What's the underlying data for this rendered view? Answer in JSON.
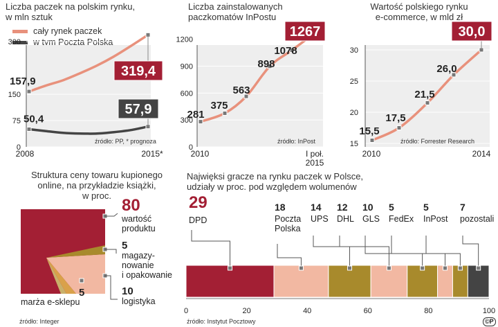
{
  "colors": {
    "salmon": "#E8917C",
    "dark": "#444444",
    "maroon": "#A31F34",
    "tan": "#F2B8A2",
    "gold": "#A88A2C",
    "grid_bg": "#EEEEEE"
  },
  "panel1": {
    "title": "Liczba paczek na polskim rynku,\nw mln sztuk",
    "legend_all": "cały rynek paczek",
    "legend_pp": "w tym Poczta Polska",
    "source": "źródło: PP, * prognoza"
  },
  "panel2": {
    "title": "Liczba zainstalowanych\npaczkomatów InPostu",
    "source": "źródło: InPost"
  },
  "panel3": {
    "title": "Wartość polskiego rynku\ne-commerce, w mld zł",
    "source": "źródło: Forrester Research"
  },
  "panel4": {
    "title": "Struktura ceny towaru kupionego\nonline, na przykładzie książki,\nw proc.",
    "source": "źródło: Integer"
  },
  "panel5": {
    "title": "Najwięksi gracze na rynku paczek w Polsce,\nudziały w proc. pod względem wolumenów",
    "source": "źródło: Instytut Pocztowy"
  },
  "logo_text": "©P",
  "chart_data": [
    {
      "type": "line",
      "title": "Liczba paczek na polskim rynku, w mln sztuk",
      "x": [
        2008,
        2009,
        2010,
        2011,
        2012,
        2013,
        2014,
        2015
      ],
      "x_tick_labels": [
        "2008",
        "2015*"
      ],
      "series": [
        {
          "name": "cały rynek paczek",
          "values": [
            157.9,
            175,
            190,
            210,
            232,
            258,
            288,
            319.4
          ],
          "labels": {
            "first": "157,9",
            "last": "319,4"
          }
        },
        {
          "name": "w tym Poczta Polska",
          "values": [
            50.4,
            45,
            40,
            38,
            38,
            42,
            48,
            57.9
          ],
          "labels": {
            "first": "50,4",
            "last": "57,9"
          }
        }
      ],
      "y_ticks": [
        0,
        75,
        150,
        300
      ],
      "ylim": [
        0,
        330
      ]
    },
    {
      "type": "line",
      "title": "Liczba zainstalowanych paczkomatów InPostu",
      "x": [
        0,
        1,
        2,
        3,
        4,
        5
      ],
      "x_tick_labels": [
        "2010",
        "I poł.\n2015"
      ],
      "series": [
        {
          "name": "paczkomaty InPost",
          "values": [
            281,
            375,
            563,
            898,
            1078,
            1267
          ],
          "labels": [
            "281",
            "375",
            "563",
            "898",
            "1078",
            "1267"
          ]
        }
      ],
      "y_ticks": [
        0,
        300,
        600,
        900,
        1200
      ],
      "ylim": [
        0,
        1290
      ]
    },
    {
      "type": "line",
      "title": "Wartość polskiego rynku e-commerce, w mld zł",
      "x": [
        2010,
        2011,
        2012,
        2013,
        2014
      ],
      "x_tick_labels": [
        "2010",
        "2014"
      ],
      "series": [
        {
          "name": "e-commerce",
          "values": [
            15.5,
            17.5,
            21.5,
            26.0,
            30.0
          ],
          "labels": [
            "15,5",
            "17,5",
            "21,5",
            "26,0",
            "30,0"
          ]
        }
      ],
      "y_ticks": [
        15,
        20,
        25,
        30
      ],
      "ylim": [
        15,
        31.5
      ]
    },
    {
      "type": "treemap",
      "title": "Struktura ceny towaru kupionego online, na przykładzie książki, w proc.",
      "segments": [
        {
          "name": "wartość produktu",
          "value": 80
        },
        {
          "name": "magazynowanie i opakowanie",
          "value": 5
        },
        {
          "name": "logistyka",
          "value": 10
        },
        {
          "name": "marża e-sklepu",
          "value": 5
        }
      ],
      "labels": [
        {
          "value": "80",
          "text": "wartość\nproduktu"
        },
        {
          "value": "5",
          "text": "magazy-\nnowanie\ni opakowanie"
        },
        {
          "value": "10",
          "text": "logistyka"
        },
        {
          "value": "5",
          "text": "marża e-sklepu"
        }
      ]
    },
    {
      "type": "bar",
      "orientation": "stacked-horizontal",
      "title": "Najwięksi gracze na rynku paczek w Polsce, udziały w proc. pod względem wolumenów",
      "categories": [
        "DPD",
        "Poczta\nPolska",
        "UPS",
        "DHL",
        "GLS",
        "FedEx",
        "InPost",
        "pozostali"
      ],
      "values": [
        29,
        18,
        14,
        12,
        10,
        5,
        5,
        7
      ],
      "x_ticks": [
        0,
        20,
        40,
        60,
        80,
        100
      ],
      "xlim": [
        0,
        100
      ]
    }
  ]
}
